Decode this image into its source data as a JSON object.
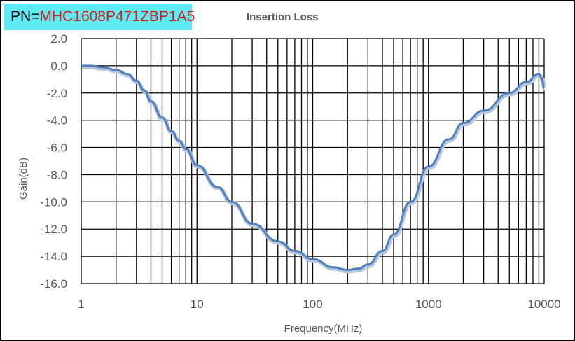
{
  "header": {
    "pn_label": "PN=",
    "pn_value": "MHC1608P471ZBP1A5",
    "pn_bg": "#5cebf2",
    "pn_color": "#d41a1a"
  },
  "chart_data": {
    "type": "line",
    "title": "Insertion Loss",
    "xlabel": "Frequency(MHz)",
    "ylabel": "Gain(dB)",
    "xscale": "log",
    "xlim": [
      1,
      10000
    ],
    "ylim": [
      -16,
      2
    ],
    "grid": true,
    "xticks": [
      "1",
      "10",
      "100",
      "1000",
      "10000"
    ],
    "yticks": [
      "2.0",
      "0.0",
      "-2.0",
      "-4.0",
      "-6.0",
      "-8.0",
      "-10.0",
      "-12.0",
      "-14.0",
      "-16.0"
    ],
    "series": [
      {
        "name": "Insertion Loss",
        "color": "#4f7fbf",
        "x": [
          1,
          1.2,
          1.5,
          2,
          2.5,
          3,
          3.5,
          4,
          5,
          6,
          7,
          8,
          10,
          15,
          20,
          30,
          50,
          70,
          100,
          150,
          200,
          250,
          300,
          400,
          500,
          700,
          1000,
          1500,
          2000,
          3000,
          5000,
          7000,
          9000,
          9500,
          10000
        ],
        "y": [
          0.0,
          0.0,
          -0.1,
          -0.3,
          -0.6,
          -1.1,
          -1.8,
          -2.6,
          -3.8,
          -4.8,
          -5.5,
          -6.1,
          -7.3,
          -8.9,
          -10.0,
          -11.6,
          -12.9,
          -13.6,
          -14.2,
          -14.8,
          -15.0,
          -14.9,
          -14.6,
          -13.6,
          -12.4,
          -10.0,
          -7.4,
          -5.4,
          -4.2,
          -3.3,
          -2.0,
          -1.2,
          -0.6,
          -0.9,
          -1.6
        ]
      }
    ]
  }
}
